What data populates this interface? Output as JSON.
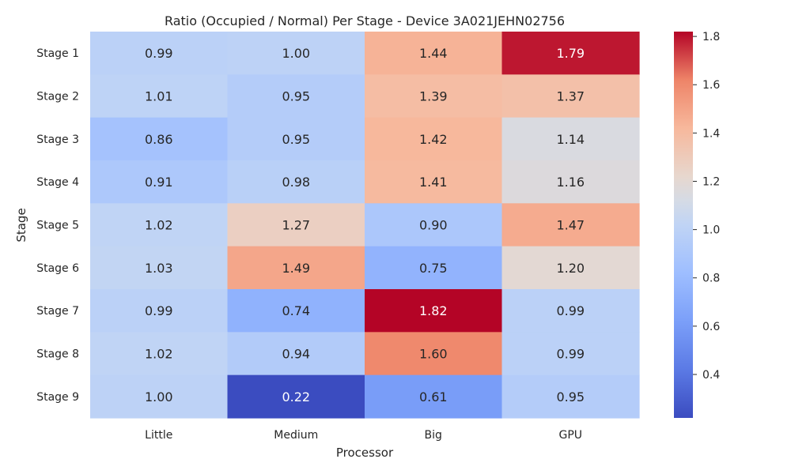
{
  "chart_data": {
    "type": "heatmap",
    "title": "Ratio (Occupied / Normal) Per Stage - Device 3A021JEHN02756",
    "xlabel": "Processor",
    "ylabel": "Stage",
    "columns": [
      "Little",
      "Medium",
      "Big",
      "GPU"
    ],
    "rows": [
      "Stage 1",
      "Stage 2",
      "Stage 3",
      "Stage 4",
      "Stage 5",
      "Stage 6",
      "Stage 7",
      "Stage 8",
      "Stage 9"
    ],
    "values": [
      [
        0.99,
        1.0,
        1.44,
        1.79
      ],
      [
        1.01,
        0.95,
        1.39,
        1.37
      ],
      [
        0.86,
        0.95,
        1.42,
        1.14
      ],
      [
        0.91,
        0.98,
        1.41,
        1.16
      ],
      [
        1.02,
        1.27,
        0.9,
        1.47
      ],
      [
        1.03,
        1.49,
        0.75,
        1.2
      ],
      [
        0.99,
        0.74,
        1.82,
        0.99
      ],
      [
        1.02,
        0.94,
        1.6,
        0.99
      ],
      [
        1.0,
        0.22,
        0.61,
        0.95
      ]
    ],
    "value_labels": [
      [
        "0.99",
        "1.00",
        "1.44",
        "1.79"
      ],
      [
        "1.01",
        "0.95",
        "1.39",
        "1.37"
      ],
      [
        "0.86",
        "0.95",
        "1.42",
        "1.14"
      ],
      [
        "0.91",
        "0.98",
        "1.41",
        "1.16"
      ],
      [
        "1.02",
        "1.27",
        "0.90",
        "1.47"
      ],
      [
        "1.03",
        "1.49",
        "0.75",
        "1.20"
      ],
      [
        "0.99",
        "0.74",
        "1.82",
        "0.99"
      ],
      [
        "1.02",
        "0.94",
        "1.60",
        "0.99"
      ],
      [
        "1.00",
        "0.22",
        "0.61",
        "0.95"
      ]
    ],
    "colormap": "coolwarm",
    "vmin": 0.22,
    "vmax": 1.82,
    "colorbar_ticks": [
      "0.4",
      "0.6",
      "0.8",
      "1.0",
      "1.2",
      "1.4",
      "1.6",
      "1.8"
    ],
    "colorbar_tick_values": [
      0.4,
      0.6,
      0.8,
      1.0,
      1.2,
      1.4,
      1.6,
      1.8
    ],
    "grid": false,
    "colorbar": "right"
  }
}
